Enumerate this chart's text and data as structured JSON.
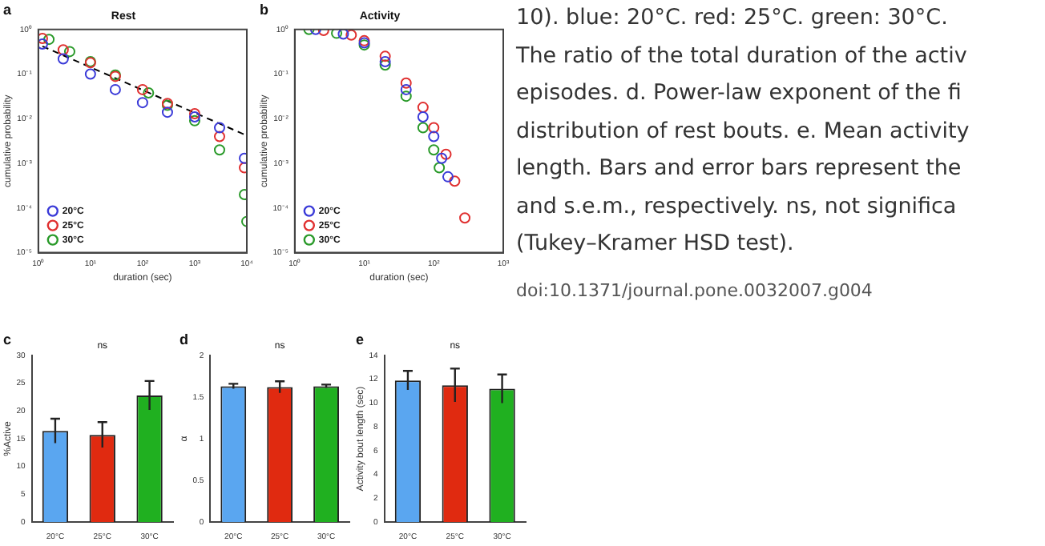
{
  "chart_data": [
    {
      "type": "scatter",
      "title": "Rest",
      "xlabel": "duration (sec)",
      "ylabel": "cumulative probability",
      "annotations": [
        "a"
      ],
      "log": "xy",
      "legend": "bottom left",
      "xlim": [
        1,
        10000
      ],
      "xticks": [
        {
          "value": 1,
          "label": "10⁰"
        },
        {
          "value": 10,
          "label": "10¹"
        },
        {
          "value": 100,
          "label": "10²"
        },
        {
          "value": 1000,
          "label": "10³"
        },
        {
          "value": 10000,
          "label": "10⁴"
        }
      ],
      "ylim": [
        1e-05,
        1
      ],
      "yticks": [
        {
          "value": 1e-05,
          "label": "10⁻⁵"
        },
        {
          "value": 0.0001,
          "label": "10⁻⁴"
        },
        {
          "value": 0.001,
          "label": "10⁻³"
        },
        {
          "value": 0.01,
          "label": "10⁻²"
        },
        {
          "value": 0.1,
          "label": "10⁻¹"
        },
        {
          "value": 1,
          "label": "10⁰"
        }
      ],
      "series": [
        {
          "name": "20°C",
          "color": "#3b3bd8",
          "marker": "circle",
          "x": [
            1.2,
            3,
            10,
            30,
            100,
            300,
            1000,
            3000,
            9000
          ],
          "values": [
            0.47,
            0.22,
            0.1,
            0.045,
            0.023,
            0.014,
            0.011,
            0.0063,
            0.0013
          ]
        },
        {
          "name": "25°C",
          "color": "#e03030",
          "marker": "circle",
          "x": [
            1.2,
            3,
            10,
            30,
            100,
            300,
            1000,
            3000,
            9000
          ],
          "values": [
            0.63,
            0.35,
            0.18,
            0.089,
            0.045,
            0.022,
            0.013,
            0.004,
            0.0008
          ]
        },
        {
          "name": "30°C",
          "color": "#2a9a2a",
          "marker": "circle",
          "x": [
            1.6,
            4,
            10,
            30,
            130,
            300,
            1000,
            3000,
            9000,
            10000
          ],
          "values": [
            0.6,
            0.32,
            0.19,
            0.095,
            0.038,
            0.02,
            0.009,
            0.002,
            0.0002,
            5e-05
          ]
        },
        {
          "type": "line",
          "color": "#000000",
          "marker": "none",
          "line_style": "dashed",
          "x": [
            1.2,
            10000
          ],
          "values": [
            0.42,
            0.0042
          ]
        }
      ]
    },
    {
      "type": "scatter",
      "title": "Activity",
      "xlabel": "duration (sec)",
      "ylabel": "cumulative probability",
      "annotations": [
        "b"
      ],
      "log": "xy",
      "legend": "bottom left",
      "xlim": [
        1,
        1000
      ],
      "xticks": [
        {
          "value": 1,
          "label": "10⁰"
        },
        {
          "value": 10,
          "label": "10¹"
        },
        {
          "value": 100,
          "label": "10²"
        },
        {
          "value": 1000,
          "label": "10³"
        }
      ],
      "ylim": [
        1e-05,
        1
      ],
      "yticks": [
        {
          "value": 1e-05,
          "label": "10⁻⁵"
        },
        {
          "value": 0.0001,
          "label": "10⁻⁴"
        },
        {
          "value": 0.001,
          "label": "10⁻³"
        },
        {
          "value": 0.01,
          "label": "10⁻²"
        },
        {
          "value": 0.1,
          "label": "10⁻¹"
        },
        {
          "value": 1,
          "label": "10⁰"
        }
      ],
      "series": [
        {
          "name": "20°C",
          "color": "#3b3bd8",
          "marker": "circle",
          "x": [
            2,
            5,
            10,
            20,
            40,
            70,
            100,
            130,
            160
          ],
          "values": [
            1,
            0.79,
            0.5,
            0.19,
            0.045,
            0.011,
            0.004,
            0.0013,
            0.0005
          ]
        },
        {
          "name": "25°C",
          "color": "#e03030",
          "marker": "circle",
          "x": [
            2.6,
            6.5,
            10,
            20,
            40,
            70,
            100,
            150,
            200,
            280
          ],
          "values": [
            0.95,
            0.75,
            0.56,
            0.25,
            0.063,
            0.018,
            0.0063,
            0.0016,
            0.0004,
            6e-05
          ]
        },
        {
          "name": "30°C",
          "color": "#2a9a2a",
          "marker": "circle",
          "x": [
            1.6,
            4,
            10,
            20,
            40,
            70,
            100,
            120
          ],
          "values": [
            1,
            0.82,
            0.45,
            0.16,
            0.032,
            0.0063,
            0.002,
            0.0008
          ]
        }
      ]
    },
    {
      "type": "bar",
      "ylabel": "%Active",
      "annotations": [
        "c",
        "ns"
      ],
      "categories": [
        "20°C",
        "25°C",
        "30°C"
      ],
      "values": [
        16.4,
        15.7,
        22.8
      ],
      "errors": [
        2.2,
        2.3,
        2.6
      ],
      "colors": [
        "#5aa6f0",
        "#e02a10",
        "#20b020"
      ],
      "ylim": [
        0,
        30
      ],
      "yticks": [
        0,
        5,
        10,
        15,
        20,
        25,
        30
      ]
    },
    {
      "type": "bar",
      "ylabel": "α",
      "annotations": [
        "d",
        "ns"
      ],
      "categories": [
        "20°C",
        "25°C",
        "30°C"
      ],
      "values": [
        1.63,
        1.62,
        1.63
      ],
      "errors": [
        0.03,
        0.07,
        0.02
      ],
      "colors": [
        "#5aa6f0",
        "#e02a10",
        "#20b020"
      ],
      "ylim": [
        0,
        2
      ],
      "yticks": [
        0,
        0.5,
        1,
        1.5,
        2
      ]
    },
    {
      "type": "bar",
      "ylabel": "Activity bout length (sec)",
      "annotations": [
        "e",
        "ns"
      ],
      "categories": [
        "20°C",
        "25°C",
        "30°C"
      ],
      "values": [
        11.9,
        11.5,
        11.2
      ],
      "errors": [
        0.8,
        1.4,
        1.2
      ],
      "colors": [
        "#5aa6f0",
        "#e02a10",
        "#20b020"
      ],
      "ylim": [
        0,
        14
      ],
      "yticks": [
        0,
        2,
        4,
        6,
        8,
        10,
        12,
        14
      ]
    },
    {
      "type": "other",
      "annotations": [
        "10). blue: 20°C. red: 25°C. green: 30°C.",
        "The ratio of the total duration of the activ",
        "episodes. d. Power-law exponent of the fi",
        "distribution of rest bouts. e. Mean activity",
        "length. Bars and error bars represent the",
        "and s.e.m., respectively. ns, not significa",
        "(Tukey–Kramer HSD test).",
        "doi:10.1371/journal.pone.0032007.g004"
      ]
    }
  ]
}
